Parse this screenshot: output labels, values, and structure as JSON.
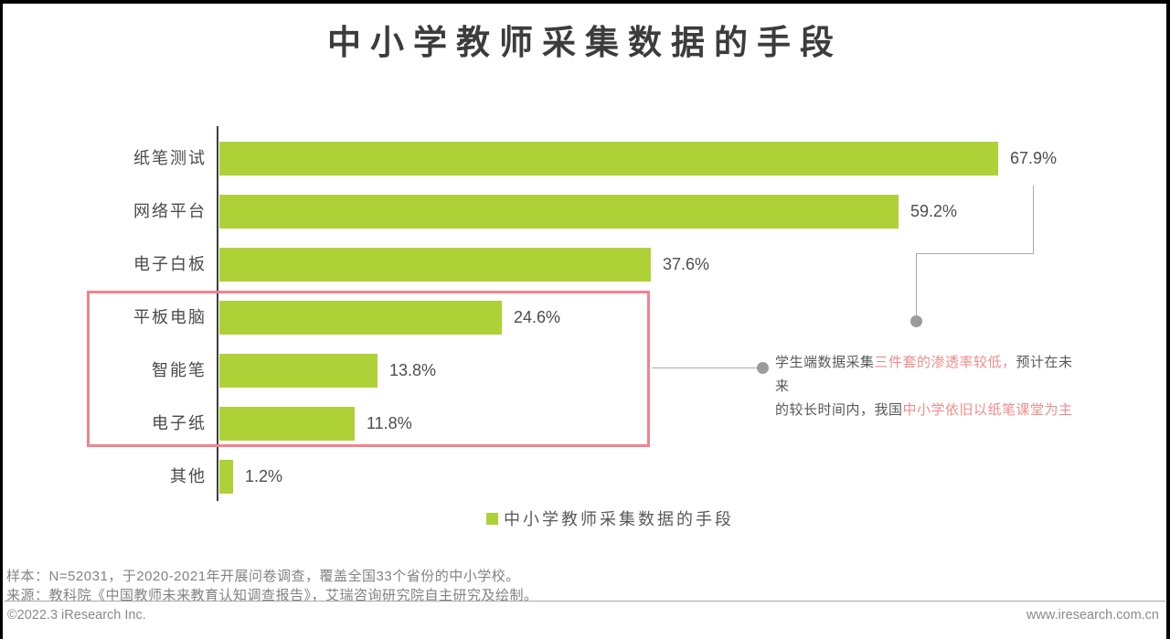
{
  "title": "中小学教师采集数据的手段",
  "chart_data": {
    "type": "bar",
    "orientation": "horizontal",
    "title": "中小学教师采集数据的手段",
    "categories": [
      "纸笔测试",
      "网络平台",
      "电子白板",
      "平板电脑",
      "智能笔",
      "电子纸",
      "其他"
    ],
    "values": [
      67.9,
      59.2,
      37.6,
      24.6,
      13.8,
      11.8,
      1.2
    ],
    "value_labels": [
      "67.9%",
      "59.2%",
      "37.6%",
      "24.6%",
      "13.8%",
      "11.8%",
      "1.2%"
    ],
    "xlim": [
      0,
      80
    ],
    "grid": false,
    "bar_color": "#afd138",
    "highlighted_categories": [
      "平板电脑",
      "智能笔",
      "电子纸"
    ],
    "legend_position": "bottom"
  },
  "legend": {
    "label": "中小学教师采集数据的手段",
    "swatch_color": "#afd138"
  },
  "annotation": {
    "line1_gray1": "学生端数据采集",
    "line1_red": "三件套的渗透率较低，",
    "line1_gray2": "预计在未来",
    "line2_gray1": "的较长时间内，我国",
    "line2_red": "中小学依旧以纸笔课堂为主"
  },
  "footer": {
    "sample": "样本：N=52031，于2020-2021年开展问卷调查，覆盖全国33个省份的中小学校。",
    "source": "来源：教科院《中国教师未来教育认知调查报告》，艾瑞咨询研究院自主研究及绘制。",
    "copyright": "©2022.3 iResearch Inc.",
    "website": "www.iresearch.com.cn"
  },
  "colors": {
    "bar_green": "#afd138",
    "highlight_box_red": "#f4828c",
    "annotation_red": "#f28b8b",
    "connector_gray": "#ababab",
    "dot_gray": "#9b9b9b",
    "title_dark": "#3c3c3c"
  }
}
